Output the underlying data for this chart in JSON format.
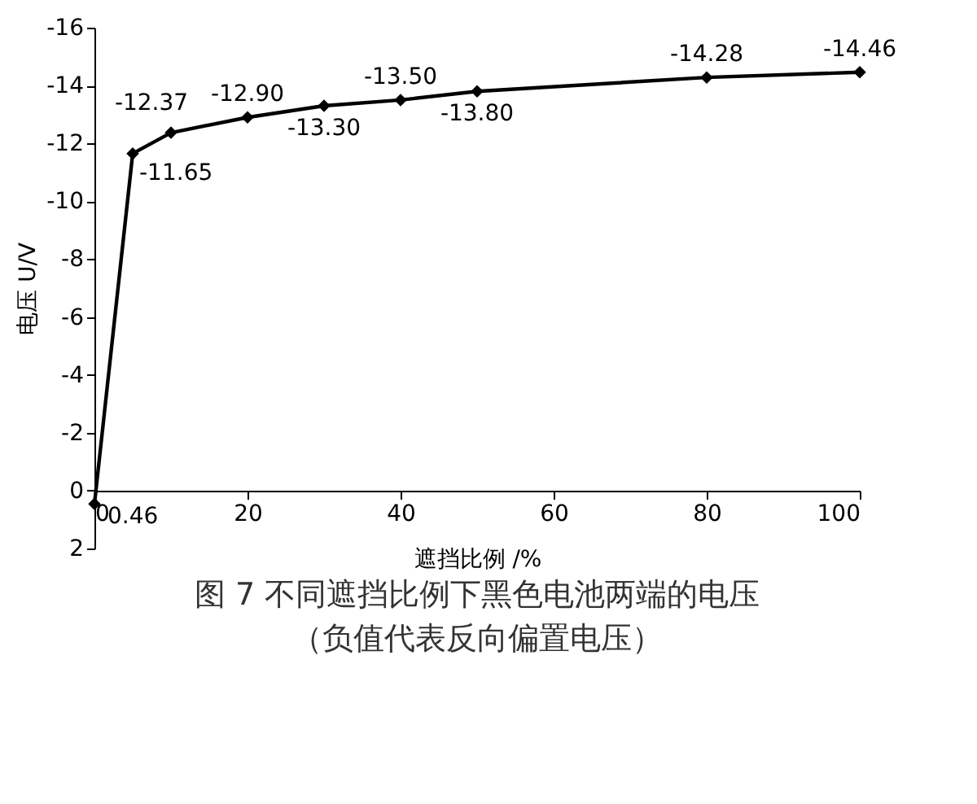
{
  "chart_data": {
    "type": "line",
    "title": "图 7 不同遮挡比例下黑色电池两端的电压",
    "subtitle": "（负值代表反向偏置电压）",
    "xlabel": "遮挡比例 /%",
    "ylabel": "电压 U/V",
    "x": [
      0,
      5,
      10,
      20,
      30,
      40,
      50,
      80,
      100
    ],
    "series": [
      {
        "color": "#000000",
        "values": [
          0.46,
          -11.65,
          -12.37,
          -12.9,
          -13.3,
          -13.5,
          -13.8,
          -14.28,
          -14.46
        ],
        "value_labels": [
          "0.46",
          "-11.65",
          "-12.37",
          "-12.90",
          "-13.30",
          "-13.50",
          "-13.80",
          "-14.28",
          "-14.46"
        ]
      }
    ],
    "xlim": [
      0,
      100
    ],
    "xticks": [
      0,
      20,
      40,
      60,
      80,
      100
    ],
    "ylim": [
      2,
      -16
    ],
    "yticks": [
      2,
      0,
      -2,
      -4,
      -6,
      -8,
      -10,
      -12,
      -14,
      -16
    ],
    "grid": false,
    "legend": false,
    "marker": "diamond",
    "line_style": "solid"
  }
}
